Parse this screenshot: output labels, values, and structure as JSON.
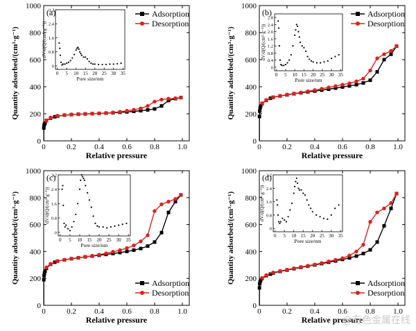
{
  "watermark": "@有色金属在线",
  "chart_data": [
    {
      "panel": "(a)",
      "type": "line",
      "xlabel": "Relative pressure",
      "ylabel": "Quantity adsorbed/(cm³·g⁻¹)",
      "xlim": [
        0,
        1.05
      ],
      "ylim": [
        0,
        1000
      ],
      "xticks": [
        0,
        0.2,
        0.4,
        0.6,
        0.8,
        1.0
      ],
      "xtick_labels": [
        "0",
        "0.2",
        "0.4",
        "0.6",
        "0.8",
        "1.0"
      ],
      "yticks": [
        0,
        200,
        400,
        600,
        800,
        1000
      ],
      "ytick_labels": [
        "0",
        "200",
        "400",
        "600",
        "800",
        "1000"
      ],
      "legend_position": "top-right",
      "series": [
        {
          "name": "Adsorption",
          "color": "#000000",
          "marker": "square",
          "x": [
            0.001,
            0.003,
            0.006,
            0.01,
            0.02,
            0.05,
            0.08,
            0.1,
            0.15,
            0.2,
            0.25,
            0.3,
            0.35,
            0.4,
            0.45,
            0.5,
            0.55,
            0.6,
            0.65,
            0.7,
            0.75,
            0.8,
            0.85,
            0.9,
            0.95,
            0.99
          ],
          "y": [
            95,
            115,
            125,
            132,
            150,
            168,
            178,
            183,
            190,
            194,
            197,
            199,
            201,
            203,
            205,
            208,
            211,
            214,
            218,
            223,
            229,
            236,
            258,
            298,
            312,
            320
          ]
        },
        {
          "name": "Desorption",
          "color": "#e0201b",
          "marker": "circle",
          "x": [
            0.99,
            0.95,
            0.9,
            0.85,
            0.8,
            0.75,
            0.7,
            0.65,
            0.6,
            0.55,
            0.5,
            0.45,
            0.4,
            0.35,
            0.3,
            0.25,
            0.2,
            0.15,
            0.1,
            0.05,
            0.02
          ],
          "y": [
            320,
            315,
            312,
            305,
            290,
            258,
            240,
            230,
            222,
            215,
            210,
            206,
            203,
            201,
            199,
            197,
            195,
            191,
            185,
            172,
            148
          ]
        }
      ],
      "inset": {
        "xlabel": "Pore size/nm",
        "ylabel": "dV/d(Q/(cm³·g⁻¹))",
        "xlim": [
          -1,
          36
        ],
        "ylim": [
          -0.2,
          3.2
        ],
        "xticks": [
          0,
          5,
          10,
          15,
          20,
          25,
          30,
          35
        ],
        "xtick_labels": [
          "0",
          "5",
          "10",
          "15",
          "20",
          "25",
          "30",
          "35"
        ],
        "yticks": [
          0,
          0.8,
          1.6,
          2.4,
          3.2
        ],
        "ytick_labels": [
          "0",
          "0.8",
          "1.6",
          "2.4",
          "3.2"
        ],
        "x": [
          1,
          1.3,
          1.6,
          2,
          2.5,
          3,
          4,
          5,
          6,
          7,
          8,
          9,
          10,
          10.5,
          11,
          11.5,
          12,
          12.5,
          13,
          14,
          15,
          16,
          17,
          18,
          19,
          20,
          22,
          24,
          26,
          28,
          30,
          32,
          34
        ],
        "y": [
          1.3,
          1.0,
          0.6,
          0.2,
          0.05,
          0.1,
          0.1,
          0.15,
          0.2,
          0.3,
          0.45,
          0.65,
          0.9,
          1.0,
          1.05,
          0.95,
          0.8,
          0.7,
          0.6,
          0.5,
          0.5,
          0.4,
          0.25,
          0.15,
          0.1,
          0.1,
          0.08,
          0.08,
          0.08,
          0.1,
          0.1,
          0.12,
          0.15
        ]
      }
    },
    {
      "panel": "(b)",
      "type": "line",
      "xlabel": "Relative pressure",
      "ylabel": "",
      "xlim": [
        0,
        1.05
      ],
      "ylim": [
        0,
        1000
      ],
      "xticks": [
        0,
        0.2,
        0.4,
        0.6,
        0.8,
        1.0
      ],
      "xtick_labels": [
        "0",
        "0.2",
        "0.4",
        "0.6",
        "0.8",
        "1.0"
      ],
      "yticks": [
        0,
        200,
        400,
        600,
        800,
        1000
      ],
      "ytick_labels": [
        "0",
        "200",
        "400",
        "600",
        "800",
        "1000"
      ],
      "legend_position": "top-right",
      "series": [
        {
          "name": "Adsorption",
          "color": "#000000",
          "marker": "square",
          "x": [
            0.001,
            0.003,
            0.006,
            0.01,
            0.02,
            0.05,
            0.08,
            0.1,
            0.15,
            0.2,
            0.25,
            0.3,
            0.35,
            0.4,
            0.45,
            0.5,
            0.55,
            0.6,
            0.65,
            0.7,
            0.75,
            0.8,
            0.85,
            0.9,
            0.95,
            0.99
          ],
          "y": [
            180,
            220,
            245,
            258,
            275,
            300,
            315,
            322,
            332,
            340,
            348,
            355,
            362,
            368,
            375,
            382,
            390,
            398,
            406,
            415,
            428,
            448,
            510,
            600,
            640,
            700
          ]
        },
        {
          "name": "Desorption",
          "color": "#e0201b",
          "marker": "circle",
          "x": [
            0.99,
            0.95,
            0.9,
            0.85,
            0.8,
            0.75,
            0.7,
            0.65,
            0.6,
            0.55,
            0.5,
            0.45,
            0.4,
            0.35,
            0.3,
            0.25,
            0.2,
            0.15,
            0.1,
            0.05,
            0.02
          ],
          "y": [
            700,
            665,
            640,
            610,
            520,
            460,
            440,
            425,
            415,
            405,
            395,
            385,
            375,
            366,
            358,
            350,
            342,
            333,
            322,
            302,
            278
          ]
        }
      ],
      "inset": {
        "xlabel": "Pore size/nm",
        "ylabel": "dV/d(Q/(cm³·g⁻¹))",
        "xlim": [
          -1,
          36
        ],
        "ylim": [
          -0.2,
          3.0
        ],
        "xticks": [
          0,
          5,
          10,
          15,
          20,
          25,
          30,
          35
        ],
        "xtick_labels": [
          "0",
          "5",
          "10",
          "15",
          "20",
          "25",
          "30",
          "35"
        ],
        "yticks": [
          0,
          0.4,
          0.8,
          1.2,
          1.6,
          2.0,
          2.4,
          2.8
        ],
        "ytick_labels": [
          "0",
          "0.4",
          "0.8",
          "1.2",
          "1.6",
          "2.0",
          "2.4",
          "2.8"
        ],
        "x": [
          1,
          1.3,
          1.6,
          2,
          2.5,
          3,
          4,
          5,
          6,
          7,
          8,
          9,
          10,
          10.5,
          11,
          11.5,
          12,
          12.5,
          13,
          14,
          15,
          16,
          17,
          18,
          19,
          20,
          22,
          24,
          26,
          28,
          30,
          32,
          34
        ],
        "y": [
          2.6,
          2.2,
          1.2,
          0.4,
          0.15,
          0.1,
          0.1,
          0.15,
          0.25,
          0.4,
          0.7,
          1.2,
          1.8,
          2.1,
          2.4,
          2.3,
          2.0,
          1.7,
          1.4,
          1.2,
          1.1,
          0.9,
          0.6,
          0.45,
          0.35,
          0.3,
          0.25,
          0.25,
          0.3,
          0.35,
          0.5,
          0.6,
          0.7
        ]
      }
    },
    {
      "panel": "(c)",
      "type": "line",
      "xlabel": "Relative pressure",
      "ylabel": "Quantity adsorbed/(cm³·g⁻¹)",
      "xlim": [
        0,
        1.05
      ],
      "ylim": [
        0,
        1000
      ],
      "xticks": [
        0,
        0.2,
        0.4,
        0.6,
        0.8,
        1.0
      ],
      "xtick_labels": [
        "0",
        "0.2",
        "0.4",
        "0.6",
        "0.8",
        "1.0"
      ],
      "yticks": [
        0,
        200,
        400,
        600,
        800,
        1000
      ],
      "ytick_labels": [
        "0",
        "200",
        "400",
        "600",
        "800",
        "1000"
      ],
      "legend_position": "bottom-right",
      "series": [
        {
          "name": "Adsorption",
          "color": "#000000",
          "marker": "square",
          "x": [
            0.001,
            0.003,
            0.006,
            0.01,
            0.02,
            0.05,
            0.08,
            0.1,
            0.15,
            0.2,
            0.25,
            0.3,
            0.35,
            0.4,
            0.45,
            0.5,
            0.55,
            0.6,
            0.65,
            0.7,
            0.75,
            0.8,
            0.85,
            0.9,
            0.95,
            0.99
          ],
          "y": [
            190,
            220,
            240,
            255,
            275,
            305,
            320,
            328,
            338,
            346,
            353,
            360,
            366,
            372,
            378,
            385,
            392,
            400,
            410,
            422,
            440,
            470,
            540,
            690,
            770,
            820
          ]
        },
        {
          "name": "Desorption",
          "color": "#e0201b",
          "marker": "circle",
          "x": [
            0.99,
            0.95,
            0.9,
            0.85,
            0.8,
            0.75,
            0.7,
            0.65,
            0.6,
            0.55,
            0.5,
            0.45,
            0.4,
            0.35,
            0.3,
            0.25,
            0.2,
            0.15,
            0.1,
            0.05,
            0.02
          ],
          "y": [
            820,
            790,
            770,
            750,
            700,
            520,
            475,
            445,
            425,
            410,
            398,
            386,
            376,
            368,
            361,
            354,
            347,
            338,
            328,
            308,
            282
          ]
        }
      ],
      "inset": {
        "xlabel": "Pore size/nm",
        "ylabel": "dV/d(Q/(cm³·g⁻¹))",
        "xlim": [
          -1,
          36
        ],
        "ylim": [
          -0.2,
          3.2
        ],
        "xticks": [
          0,
          5,
          10,
          15,
          20,
          25,
          30,
          35
        ],
        "xtick_labels": [
          "0",
          "5",
          "10",
          "15",
          "20",
          "25",
          "30",
          "35"
        ],
        "yticks": [
          0,
          0.8,
          1.6,
          2.4,
          3.2
        ],
        "ytick_labels": [
          "0",
          "0.8",
          "1.6",
          "2.4",
          "3.2"
        ],
        "x": [
          1,
          1.3,
          1.6,
          2,
          2.5,
          3,
          4,
          5,
          6,
          7,
          8,
          9,
          10,
          10.5,
          11,
          11.5,
          12,
          12.5,
          13,
          14,
          15,
          16,
          17,
          18,
          19,
          20,
          22,
          24,
          26,
          28,
          30,
          32,
          34
        ],
        "y": [
          2.4,
          2.6,
          1.5,
          0.5,
          0.3,
          0.4,
          0.2,
          0.1,
          0.3,
          0.6,
          1.0,
          1.6,
          2.4,
          2.9,
          3.2,
          3.1,
          3.0,
          2.9,
          2.6,
          2.2,
          1.8,
          1.4,
          0.9,
          0.5,
          0.35,
          0.3,
          0.3,
          0.25,
          0.3,
          0.35,
          0.4,
          0.45,
          0.5
        ]
      }
    },
    {
      "panel": "(d)",
      "type": "line",
      "xlabel": "Relative pressure",
      "ylabel": "",
      "xlim": [
        0,
        1.05
      ],
      "ylim": [
        0,
        1000
      ],
      "xticks": [
        0,
        0.2,
        0.4,
        0.6,
        0.8,
        1.0
      ],
      "xtick_labels": [
        "0",
        "0.2",
        "0.4",
        "0.6",
        "0.8",
        "1.0"
      ],
      "yticks": [
        0,
        200,
        400,
        600,
        800,
        1000
      ],
      "ytick_labels": [
        "0",
        "200",
        "400",
        "600",
        "800",
        "1000"
      ],
      "legend_position": "bottom-right",
      "series": [
        {
          "name": "Adsorption",
          "color": "#000000",
          "marker": "square",
          "x": [
            0.001,
            0.003,
            0.006,
            0.01,
            0.02,
            0.05,
            0.08,
            0.1,
            0.15,
            0.2,
            0.25,
            0.3,
            0.35,
            0.4,
            0.45,
            0.5,
            0.55,
            0.6,
            0.65,
            0.7,
            0.75,
            0.8,
            0.85,
            0.9,
            0.95,
            0.99
          ],
          "y": [
            130,
            160,
            175,
            185,
            200,
            220,
            232,
            240,
            252,
            262,
            272,
            282,
            291,
            300,
            310,
            320,
            330,
            341,
            352,
            366,
            385,
            412,
            470,
            590,
            720,
            830
          ]
        },
        {
          "name": "Desorption",
          "color": "#e0201b",
          "marker": "circle",
          "x": [
            0.99,
            0.95,
            0.9,
            0.85,
            0.8,
            0.75,
            0.7,
            0.65,
            0.6,
            0.55,
            0.5,
            0.45,
            0.4,
            0.35,
            0.3,
            0.25,
            0.2,
            0.15,
            0.1,
            0.05,
            0.02
          ],
          "y": [
            830,
            760,
            720,
            690,
            620,
            450,
            400,
            370,
            350,
            338,
            326,
            314,
            303,
            294,
            285,
            275,
            265,
            255,
            244,
            224,
            203
          ]
        }
      ],
      "inset": {
        "xlabel": "Pore size/nm",
        "ylabel": "dV/d(Q/(cm³·g⁻¹))",
        "xlim": [
          -1,
          36
        ],
        "ylim": [
          -0.2,
          3.2
        ],
        "xticks": [
          0,
          5,
          10,
          15,
          20,
          25,
          30,
          35
        ],
        "xtick_labels": [
          "0",
          "5",
          "10",
          "15",
          "20",
          "25",
          "30",
          "35"
        ],
        "yticks": [
          0,
          0.8,
          1.6,
          2.4,
          3.2
        ],
        "ytick_labels": [
          "0",
          "0.8",
          "1.6",
          "2.4",
          "3.2"
        ],
        "x": [
          1,
          1.3,
          1.6,
          2,
          2.5,
          3,
          4,
          5,
          6,
          7,
          8,
          9,
          10,
          10.5,
          11,
          11.5,
          12,
          12.5,
          13,
          14,
          15,
          16,
          17,
          18,
          19,
          20,
          22,
          24,
          26,
          28,
          30,
          32,
          34
        ],
        "y": [
          1.7,
          1.4,
          0.8,
          0.4,
          0.3,
          0.4,
          0.6,
          0.5,
          0.4,
          0.7,
          1.1,
          1.5,
          2.1,
          2.5,
          2.8,
          3.0,
          2.7,
          2.4,
          2.3,
          2.3,
          2.1,
          2.0,
          1.7,
          1.4,
          1.2,
          1.0,
          0.8,
          0.7,
          0.6,
          0.55,
          0.8,
          1.2,
          1.4
        ]
      }
    }
  ]
}
